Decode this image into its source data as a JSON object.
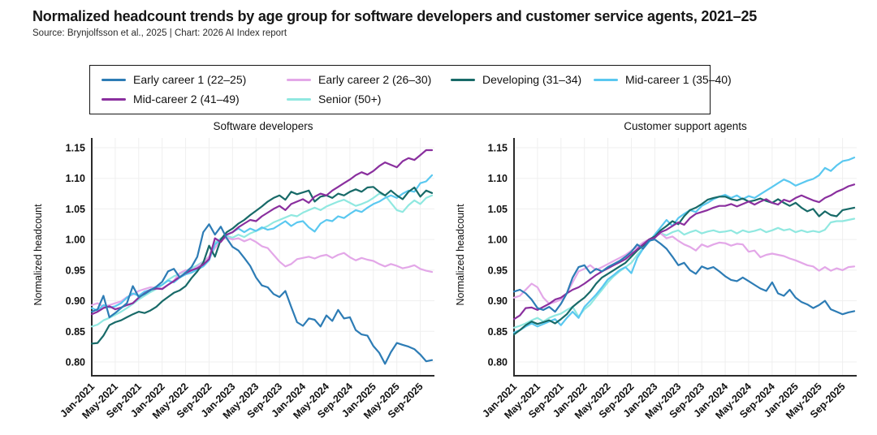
{
  "header": {
    "title": "Normalized headcount trends by age group for software developers and customer service agents, 2021–25",
    "source": "Source: Brynjolfsson et al., 2025 | Chart: 2026 AI Index report"
  },
  "colors": {
    "early_career_1": "#2d7cb5",
    "early_career_2": "#e3a7e8",
    "developing": "#186a68",
    "mid_career_1": "#5ac8f0",
    "mid_career_2": "#8a2f9e",
    "senior": "#90e8e0",
    "axis": "#2b2b2b",
    "grid": "#efefef"
  },
  "legend": {
    "items": [
      {
        "label": "Early career 1 (22–25)",
        "color": "#2d7cb5"
      },
      {
        "label": "Early career 2 (26–30)",
        "color": "#e3a7e8"
      },
      {
        "label": "Developing (31–34)",
        "color": "#186a68"
      },
      {
        "label": "Mid-career 1 (35–40)",
        "color": "#5ac8f0"
      },
      {
        "label": "Mid-career 2 (41–49)",
        "color": "#8a2f9e"
      },
      {
        "label": "Senior (50+)",
        "color": "#90e8e0"
      }
    ]
  },
  "chart_data": [
    {
      "type": "line",
      "title": "Software developers",
      "ylabel": "Normalized headcount",
      "ylim": [
        0.8,
        1.15
      ],
      "yticks": [
        0.8,
        0.85,
        0.9,
        0.95,
        1.0,
        1.05,
        1.1,
        1.15
      ],
      "grid": true,
      "legend_position": "top",
      "n_months": 59,
      "x_start": "Jan-2021",
      "x_end": "Nov-2025",
      "xtick_every": 4,
      "xtick_labels": [
        "Jan-2021",
        "May-2021",
        "Sep-2021",
        "Jan-2022",
        "May-2022",
        "Sep-2022",
        "Jan-2023",
        "May-2023",
        "Sep-2023",
        "Jan-2024",
        "May-2024",
        "Sep-2024",
        "Jan-2025",
        "May-2025",
        "Sep-2025"
      ],
      "series": [
        {
          "name": "Senior (50+)",
          "color": "#90e8e0",
          "values": [
            0.858,
            0.861,
            0.868,
            0.872,
            0.877,
            0.882,
            0.888,
            0.895,
            0.902,
            0.908,
            0.914,
            0.919,
            0.926,
            0.934,
            0.94,
            0.944,
            0.949,
            0.953,
            0.958,
            0.964,
            0.972,
            0.995,
            1.002,
            1.006,
            1.003,
            1.008,
            1.004,
            1.01,
            1.014,
            1.018,
            1.022,
            1.028,
            1.032,
            1.036,
            1.04,
            1.038,
            1.044,
            1.048,
            1.052,
            1.048,
            1.054,
            1.058,
            1.062,
            1.065,
            1.06,
            1.055,
            1.058,
            1.062,
            1.068,
            1.075,
            1.072,
            1.06,
            1.048,
            1.045,
            1.056,
            1.064,
            1.058,
            1.068,
            1.072
          ]
        },
        {
          "name": "Early career 2 (26–30)",
          "color": "#e3a7e8",
          "values": [
            0.893,
            0.896,
            0.89,
            0.893,
            0.896,
            0.899,
            0.906,
            0.91,
            0.916,
            0.919,
            0.922,
            0.921,
            0.92,
            0.926,
            0.933,
            0.945,
            0.95,
            0.948,
            0.956,
            0.963,
            0.972,
            0.986,
            1.0,
            1.003,
            1.0,
            1.002,
            0.997,
            1.001,
            0.996,
            0.989,
            0.986,
            0.975,
            0.964,
            0.956,
            0.96,
            0.968,
            0.97,
            0.972,
            0.969,
            0.973,
            0.975,
            0.97,
            0.975,
            0.978,
            0.971,
            0.966,
            0.97,
            0.967,
            0.965,
            0.96,
            0.956,
            0.96,
            0.957,
            0.953,
            0.955,
            0.958,
            0.952,
            0.949,
            0.947
          ]
        },
        {
          "name": "Mid-career 1 (35–40)",
          "color": "#5ac8f0",
          "values": [
            0.888,
            0.884,
            0.893,
            0.889,
            0.891,
            0.896,
            0.905,
            0.912,
            0.908,
            0.915,
            0.918,
            0.922,
            0.926,
            0.933,
            0.93,
            0.938,
            0.943,
            0.946,
            0.951,
            0.956,
            0.966,
            0.992,
            1.0,
            1.008,
            1.012,
            1.018,
            1.012,
            1.018,
            1.014,
            1.02,
            1.016,
            1.018,
            1.024,
            1.03,
            1.022,
            1.028,
            1.03,
            1.02,
            1.013,
            1.026,
            1.032,
            1.03,
            1.038,
            1.035,
            1.042,
            1.048,
            1.045,
            1.052,
            1.058,
            1.062,
            1.068,
            1.072,
            1.068,
            1.075,
            1.08,
            1.078,
            1.092,
            1.095,
            1.105
          ]
        },
        {
          "name": "Developing (31–34)",
          "color": "#186a68",
          "values": [
            0.83,
            0.831,
            0.843,
            0.86,
            0.865,
            0.868,
            0.873,
            0.878,
            0.882,
            0.88,
            0.884,
            0.89,
            0.899,
            0.906,
            0.913,
            0.917,
            0.924,
            0.937,
            0.948,
            0.962,
            0.99,
            0.972,
            1.0,
            1.012,
            1.018,
            1.026,
            1.032,
            1.04,
            1.047,
            1.054,
            1.062,
            1.068,
            1.072,
            1.065,
            1.078,
            1.074,
            1.077,
            1.08,
            1.062,
            1.07,
            1.072,
            1.068,
            1.075,
            1.072,
            1.078,
            1.082,
            1.078,
            1.085,
            1.086,
            1.078,
            1.072,
            1.08,
            1.072,
            1.066,
            1.078,
            1.085,
            1.07,
            1.08,
            1.076
          ]
        },
        {
          "name": "Mid-career 2 (41–49)",
          "color": "#8a2f9e",
          "values": [
            0.878,
            0.882,
            0.888,
            0.891,
            0.886,
            0.889,
            0.893,
            0.896,
            0.905,
            0.912,
            0.918,
            0.92,
            0.919,
            0.926,
            0.932,
            0.939,
            0.945,
            0.95,
            0.953,
            0.959,
            0.968,
            1.002,
            0.996,
            1.008,
            1.012,
            1.02,
            1.026,
            1.032,
            1.03,
            1.038,
            1.044,
            1.05,
            1.055,
            1.048,
            1.058,
            1.062,
            1.066,
            1.06,
            1.07,
            1.075,
            1.072,
            1.08,
            1.086,
            1.092,
            1.098,
            1.105,
            1.11,
            1.106,
            1.112,
            1.12,
            1.126,
            1.122,
            1.118,
            1.128,
            1.133,
            1.13,
            1.138,
            1.146,
            1.146
          ]
        },
        {
          "name": "Early career 1 (22–25)",
          "color": "#2d7cb5",
          "values": [
            0.882,
            0.886,
            0.908,
            0.873,
            0.88,
            0.888,
            0.896,
            0.924,
            0.906,
            0.911,
            0.917,
            0.923,
            0.931,
            0.948,
            0.952,
            0.938,
            0.946,
            0.955,
            0.972,
            1.012,
            1.025,
            1.008,
            1.021,
            1.002,
            0.988,
            0.982,
            0.97,
            0.957,
            0.938,
            0.925,
            0.922,
            0.911,
            0.906,
            0.916,
            0.89,
            0.865,
            0.859,
            0.871,
            0.869,
            0.858,
            0.876,
            0.867,
            0.885,
            0.871,
            0.873,
            0.852,
            0.845,
            0.843,
            0.826,
            0.815,
            0.797,
            0.816,
            0.831,
            0.828,
            0.825,
            0.821,
            0.812,
            0.801,
            0.803
          ]
        }
      ]
    },
    {
      "type": "line",
      "title": "Customer support agents",
      "ylabel": "Normalized headcount",
      "ylim": [
        0.8,
        1.15
      ],
      "yticks": [
        0.8,
        0.85,
        0.9,
        0.95,
        1.0,
        1.05,
        1.1,
        1.15
      ],
      "grid": true,
      "legend_position": "top",
      "n_months": 59,
      "x_start": "Jan-2021",
      "x_end": "Nov-2025",
      "xtick_every": 4,
      "xtick_labels": [
        "Jan-2021",
        "May-2021",
        "Sep-2021",
        "Jan-2022",
        "May-2022",
        "Sep-2022",
        "Jan-2023",
        "May-2023",
        "Sep-2023",
        "Jan-2024",
        "May-2024",
        "Sep-2024",
        "Jan-2025",
        "May-2025",
        "Sep-2025"
      ],
      "series": [
        {
          "name": "Senior (50+)",
          "color": "#90e8e0",
          "values": [
            0.856,
            0.859,
            0.863,
            0.868,
            0.872,
            0.866,
            0.872,
            0.876,
            0.879,
            0.885,
            0.89,
            0.874,
            0.886,
            0.894,
            0.906,
            0.918,
            0.93,
            0.94,
            0.948,
            0.955,
            0.962,
            0.975,
            0.986,
            0.998,
            1.005,
            1.01,
            1.007,
            1.012,
            1.015,
            1.008,
            1.012,
            1.015,
            1.01,
            1.013,
            1.015,
            1.012,
            1.013,
            1.015,
            1.01,
            1.015,
            1.012,
            1.014,
            1.017,
            1.012,
            1.015,
            1.019,
            1.015,
            1.017,
            1.012,
            1.015,
            1.012,
            1.014,
            1.012,
            1.016,
            1.028,
            1.03,
            1.03,
            1.032,
            1.034
          ]
        },
        {
          "name": "Early career 2 (26–30)",
          "color": "#e3a7e8",
          "values": [
            0.905,
            0.908,
            0.918,
            0.928,
            0.922,
            0.905,
            0.895,
            0.898,
            0.902,
            0.912,
            0.93,
            0.948,
            0.952,
            0.958,
            0.95,
            0.955,
            0.96,
            0.965,
            0.97,
            0.975,
            0.982,
            0.988,
            0.995,
            1.0,
            1.005,
            1.01,
            1.002,
            1.005,
            0.998,
            0.992,
            0.988,
            0.982,
            0.992,
            0.988,
            0.992,
            0.995,
            0.994,
            0.99,
            0.993,
            0.992,
            0.98,
            0.982,
            0.971,
            0.975,
            0.977,
            0.975,
            0.973,
            0.969,
            0.966,
            0.962,
            0.958,
            0.956,
            0.949,
            0.955,
            0.949,
            0.953,
            0.95,
            0.955,
            0.956
          ]
        },
        {
          "name": "Mid-career 1 (35–40)",
          "color": "#5ac8f0",
          "values": [
            0.848,
            0.852,
            0.858,
            0.863,
            0.858,
            0.862,
            0.866,
            0.87,
            0.86,
            0.872,
            0.882,
            0.872,
            0.89,
            0.9,
            0.91,
            0.922,
            0.935,
            0.942,
            0.95,
            0.955,
            0.945,
            0.97,
            0.985,
            0.996,
            1.008,
            1.02,
            1.032,
            1.022,
            1.035,
            1.042,
            1.048,
            1.045,
            1.055,
            1.06,
            1.066,
            1.07,
            1.073,
            1.068,
            1.072,
            1.066,
            1.071,
            1.068,
            1.074,
            1.08,
            1.086,
            1.092,
            1.098,
            1.094,
            1.088,
            1.092,
            1.096,
            1.099,
            1.105,
            1.117,
            1.112,
            1.121,
            1.128,
            1.13,
            1.134
          ]
        },
        {
          "name": "Developing (31–34)",
          "color": "#186a68",
          "values": [
            0.845,
            0.852,
            0.86,
            0.866,
            0.862,
            0.865,
            0.868,
            0.863,
            0.87,
            0.878,
            0.89,
            0.898,
            0.905,
            0.915,
            0.928,
            0.938,
            0.944,
            0.95,
            0.956,
            0.962,
            0.972,
            0.982,
            0.99,
            1.0,
            1.005,
            1.015,
            1.022,
            1.03,
            1.025,
            1.038,
            1.048,
            1.052,
            1.058,
            1.065,
            1.068,
            1.07,
            1.07,
            1.066,
            1.064,
            1.067,
            1.062,
            1.064,
            1.067,
            1.063,
            1.06,
            1.066,
            1.06,
            1.055,
            1.06,
            1.052,
            1.046,
            1.05,
            1.038,
            1.046,
            1.04,
            1.038,
            1.048,
            1.05,
            1.052
          ]
        },
        {
          "name": "Mid-career 2 (41–49)",
          "color": "#8a2f9e",
          "values": [
            0.87,
            0.876,
            0.888,
            0.889,
            0.885,
            0.89,
            0.895,
            0.902,
            0.905,
            0.912,
            0.918,
            0.922,
            0.928,
            0.935,
            0.942,
            0.948,
            0.953,
            0.958,
            0.963,
            0.968,
            0.976,
            0.984,
            0.992,
            1.0,
            1.003,
            1.012,
            1.016,
            1.022,
            1.028,
            1.024,
            1.035,
            1.042,
            1.045,
            1.048,
            1.052,
            1.055,
            1.055,
            1.058,
            1.054,
            1.058,
            1.062,
            1.057,
            1.062,
            1.066,
            1.06,
            1.057,
            1.065,
            1.062,
            1.068,
            1.072,
            1.068,
            1.064,
            1.061,
            1.068,
            1.072,
            1.078,
            1.082,
            1.087,
            1.09
          ]
        },
        {
          "name": "Early career 1 (22–25)",
          "color": "#2d7cb5",
          "values": [
            0.915,
            0.918,
            0.912,
            0.902,
            0.888,
            0.885,
            0.89,
            0.882,
            0.895,
            0.912,
            0.938,
            0.955,
            0.958,
            0.945,
            0.952,
            0.948,
            0.955,
            0.96,
            0.965,
            0.972,
            0.98,
            0.992,
            0.985,
            0.998,
            1.0,
            0.993,
            0.985,
            0.972,
            0.958,
            0.962,
            0.95,
            0.944,
            0.956,
            0.952,
            0.955,
            0.948,
            0.94,
            0.934,
            0.932,
            0.938,
            0.932,
            0.926,
            0.92,
            0.916,
            0.93,
            0.912,
            0.908,
            0.918,
            0.905,
            0.898,
            0.894,
            0.888,
            0.893,
            0.9,
            0.886,
            0.882,
            0.878,
            0.881,
            0.883
          ]
        }
      ]
    }
  ]
}
